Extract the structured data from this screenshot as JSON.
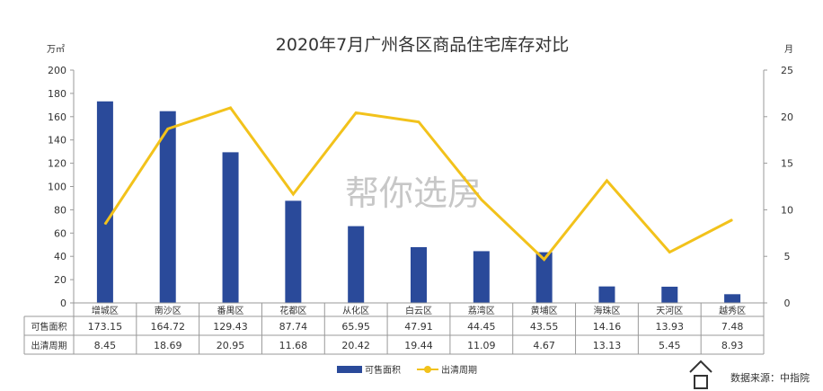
{
  "chart_data": {
    "type": "bar+line",
    "title": "2020年7月广州各区商品住宅库存对比",
    "left_unit": "万㎡",
    "right_unit": "月",
    "categories": [
      "增城区",
      "南沙区",
      "番禺区",
      "花都区",
      "从化区",
      "白云区",
      "荔湾区",
      "黄埔区",
      "海珠区",
      "天河区",
      "越秀区"
    ],
    "series": [
      {
        "name": "可售面积",
        "type": "bar",
        "axis": "left",
        "color": "#2a4a9a",
        "values": [
          173.15,
          164.72,
          129.43,
          87.74,
          65.95,
          47.91,
          44.45,
          43.55,
          14.16,
          13.93,
          7.48
        ]
      },
      {
        "name": "出清周期",
        "type": "line",
        "axis": "right",
        "color": "#f2c21b",
        "values": [
          8.45,
          18.69,
          20.95,
          11.68,
          20.42,
          19.44,
          11.09,
          4.67,
          13.13,
          5.45,
          8.93
        ]
      }
    ],
    "ylim_left": [
      0,
      200
    ],
    "yticks_left": [
      0,
      20,
      40,
      60,
      80,
      100,
      120,
      140,
      160,
      180,
      200
    ],
    "ylim_right": [
      0,
      25
    ],
    "yticks_right": [
      0,
      5,
      10,
      15,
      20,
      25
    ],
    "value_labels_left": [
      "173.15",
      "164.72",
      "129.43",
      "87.74",
      "65.95",
      "47.91",
      "44.45",
      "43.55",
      "14.16",
      "13.93",
      "7.48"
    ],
    "value_labels_right": [
      "8.45",
      "18.69",
      "20.95",
      "11.68",
      "20.42",
      "19.44",
      "11.09",
      "4.67",
      "13.13",
      "5.45",
      "8.93"
    ],
    "legend_position": "bottom",
    "grid": false
  },
  "watermark": "帮你选房",
  "source": "数据来源：中指院"
}
